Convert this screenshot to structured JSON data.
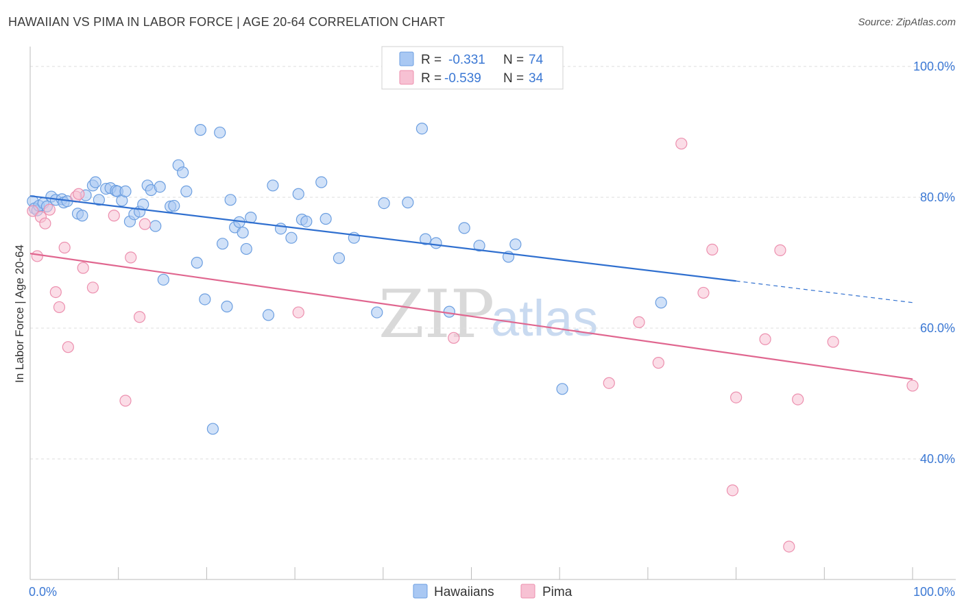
{
  "title": "HAWAIIAN VS PIMA IN LABOR FORCE | AGE 20-64 CORRELATION CHART",
  "source": "Source: ZipAtlas.com",
  "colors": {
    "hawaiians_fill": "#a9c8f3",
    "hawaiians_stroke": "#6b9ee0",
    "hawaiians_line": "#2f6fcf",
    "pima_fill": "#f7c1d3",
    "pima_stroke": "#ec8fae",
    "pima_line": "#e0668f",
    "axis_label": "#3b78d4",
    "grid": "#dddddd"
  },
  "legend": {
    "r_label": "R =",
    "n_label": "N =",
    "entries": [
      {
        "name": "Hawaiians",
        "r": "-0.331",
        "n": "74"
      },
      {
        "name": "Pima",
        "r": "-0.539",
        "n": "34"
      }
    ]
  },
  "watermark": {
    "zip": "ZIP",
    "atlas": "atlas"
  },
  "chart_data": {
    "type": "scatter",
    "title": "HAWAIIAN VS PIMA IN LABOR FORCE | AGE 20-64 CORRELATION CHART",
    "xlabel": "",
    "ylabel": "In Labor Force | Age 20-64",
    "xlim": [
      0,
      100
    ],
    "ylim": [
      20,
      102
    ],
    "x_tick_labels": [
      "0.0%",
      "100.0%"
    ],
    "y_ticks": [
      {
        "value": 40,
        "label": "40.0%"
      },
      {
        "value": 60,
        "label": "60.0%"
      },
      {
        "value": 80,
        "label": "80.0%"
      },
      {
        "value": 100,
        "label": "100.0%"
      }
    ],
    "series": [
      {
        "name": "Hawaiians",
        "trend": {
          "x0": 0,
          "y0": 80.2,
          "x1": 80,
          "y1": 67.2,
          "dashed_to_x": 100,
          "dashed_to_y": 63.9
        },
        "points": [
          [
            0.3,
            79.4
          ],
          [
            0.5,
            78.3
          ],
          [
            0.8,
            78.0
          ],
          [
            1.0,
            78.7
          ],
          [
            1.5,
            79.1
          ],
          [
            1.9,
            78.6
          ],
          [
            2.4,
            80.1
          ],
          [
            2.9,
            79.6
          ],
          [
            3.6,
            79.7
          ],
          [
            3.8,
            79.2
          ],
          [
            4.2,
            79.4
          ],
          [
            5.4,
            77.5
          ],
          [
            5.9,
            77.2
          ],
          [
            6.3,
            80.3
          ],
          [
            7.1,
            81.8
          ],
          [
            7.4,
            82.3
          ],
          [
            7.8,
            79.6
          ],
          [
            8.6,
            81.3
          ],
          [
            9.1,
            81.4
          ],
          [
            9.7,
            81.0
          ],
          [
            9.9,
            80.9
          ],
          [
            10.4,
            79.5
          ],
          [
            10.8,
            80.9
          ],
          [
            11.3,
            76.3
          ],
          [
            11.8,
            77.4
          ],
          [
            12.4,
            77.8
          ],
          [
            12.8,
            78.9
          ],
          [
            13.3,
            81.8
          ],
          [
            13.7,
            81.1
          ],
          [
            14.2,
            75.6
          ],
          [
            14.7,
            81.6
          ],
          [
            15.1,
            67.4
          ],
          [
            15.9,
            78.6
          ],
          [
            16.3,
            78.7
          ],
          [
            16.8,
            84.9
          ],
          [
            17.3,
            83.8
          ],
          [
            17.7,
            80.9
          ],
          [
            18.9,
            70.0
          ],
          [
            19.3,
            90.3
          ],
          [
            19.8,
            64.4
          ],
          [
            20.7,
            44.6
          ],
          [
            21.5,
            89.9
          ],
          [
            21.8,
            72.9
          ],
          [
            22.3,
            63.3
          ],
          [
            22.7,
            79.6
          ],
          [
            23.2,
            75.4
          ],
          [
            23.7,
            76.2
          ],
          [
            24.1,
            74.6
          ],
          [
            24.5,
            72.1
          ],
          [
            25.0,
            76.9
          ],
          [
            27.0,
            62.0
          ],
          [
            27.5,
            81.8
          ],
          [
            28.4,
            75.2
          ],
          [
            29.6,
            73.8
          ],
          [
            30.4,
            80.5
          ],
          [
            30.8,
            76.6
          ],
          [
            31.3,
            76.3
          ],
          [
            33.0,
            82.3
          ],
          [
            33.5,
            76.7
          ],
          [
            35.0,
            70.7
          ],
          [
            36.7,
            73.8
          ],
          [
            39.3,
            62.4
          ],
          [
            40.1,
            79.1
          ],
          [
            42.8,
            79.2
          ],
          [
            44.4,
            90.5
          ],
          [
            44.8,
            73.6
          ],
          [
            46.0,
            73.0
          ],
          [
            47.5,
            62.5
          ],
          [
            49.2,
            75.3
          ],
          [
            50.9,
            72.6
          ],
          [
            54.2,
            70.9
          ],
          [
            55.0,
            72.8
          ],
          [
            60.3,
            50.7
          ],
          [
            71.5,
            63.9
          ]
        ]
      },
      {
        "name": "Pima",
        "trend": {
          "x0": 0,
          "y0": 71.4,
          "x1": 100,
          "y1": 52.2
        },
        "points": [
          [
            0.3,
            77.9
          ],
          [
            0.8,
            71.0
          ],
          [
            1.2,
            77.0
          ],
          [
            1.7,
            76.0
          ],
          [
            2.2,
            78.1
          ],
          [
            2.9,
            65.5
          ],
          [
            3.3,
            63.2
          ],
          [
            3.9,
            72.3
          ],
          [
            4.3,
            57.1
          ],
          [
            5.2,
            80.1
          ],
          [
            5.5,
            80.5
          ],
          [
            6.0,
            69.2
          ],
          [
            7.1,
            66.2
          ],
          [
            9.5,
            77.2
          ],
          [
            10.8,
            48.9
          ],
          [
            11.4,
            70.8
          ],
          [
            12.4,
            61.7
          ],
          [
            13.0,
            75.9
          ],
          [
            30.4,
            62.4
          ],
          [
            48.0,
            58.5
          ],
          [
            65.6,
            51.6
          ],
          [
            69.0,
            60.9
          ],
          [
            71.2,
            54.7
          ],
          [
            73.8,
            88.2
          ],
          [
            76.3,
            65.4
          ],
          [
            77.3,
            72.0
          ],
          [
            79.6,
            35.2
          ],
          [
            80.0,
            49.4
          ],
          [
            83.3,
            58.3
          ],
          [
            85.0,
            71.9
          ],
          [
            86.0,
            26.6
          ],
          [
            87.0,
            49.1
          ],
          [
            91.0,
            57.9
          ],
          [
            100.0,
            51.2
          ]
        ]
      }
    ]
  }
}
